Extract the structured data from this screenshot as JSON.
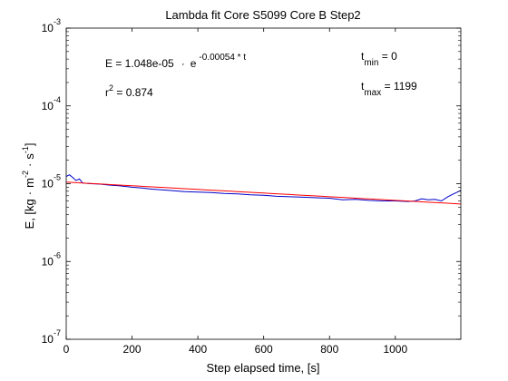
{
  "chart_data": {
    "type": "line",
    "title": "Lambda fit  Core S5099 Core B  Step2",
    "xlabel": "Step elapsed time, [s]",
    "ylabel": {
      "base": "E, [kg",
      "m": "m",
      "exp_m": "-2",
      "s": "s",
      "exp_s": "-1",
      "close": "]"
    },
    "xlim": [
      0,
      1199
    ],
    "ylim": [
      1e-07,
      0.001
    ],
    "yscale": "log",
    "grid": false,
    "xticks": [
      0,
      200,
      400,
      600,
      800,
      1000
    ],
    "xtick_labels": [
      "0",
      "200",
      "400",
      "600",
      "800",
      "1000"
    ],
    "yticks": [
      1e-07,
      1e-06,
      1e-05,
      0.0001,
      0.001
    ],
    "ytick_labels": [
      {
        "base": "10",
        "exp": "-7"
      },
      {
        "base": "10",
        "exp": "-6"
      },
      {
        "base": "10",
        "exp": "-5"
      },
      {
        "base": "10",
        "exp": "-4"
      },
      {
        "base": "10",
        "exp": "-3"
      }
    ],
    "annotations": {
      "equation": {
        "lhs": "E = 1.048e-05",
        "dot": "·",
        "base": "e",
        "exp": "-0.00054 * t"
      },
      "r2": {
        "label": "r",
        "exp": "2",
        "value": " = 0.874"
      },
      "tmin": {
        "label": "t",
        "sub": "min",
        "value": " = 0"
      },
      "tmax": {
        "label": "t",
        "sub": "max",
        "value": " = 1199"
      }
    },
    "series": [
      {
        "color": "#0000cc",
        "x": [
          0,
          10,
          20,
          30,
          40,
          50,
          75,
          100,
          130,
          160,
          200,
          230,
          260,
          300,
          330,
          360,
          400,
          440,
          480,
          520,
          560,
          600,
          640,
          680,
          720,
          760,
          800,
          840,
          880,
          920,
          960,
          1000,
          1040,
          1060,
          1080,
          1100,
          1120,
          1140,
          1160,
          1180,
          1199
        ],
        "y": [
          1.24e-05,
          1.3e-05,
          1.2e-05,
          1.1e-05,
          1.15e-05,
          1.02e-05,
          1e-05,
          9.9e-06,
          9.6e-06,
          9.4e-06,
          9e-06,
          8.8e-06,
          8.5e-06,
          8.3e-06,
          8.1e-06,
          7.9e-06,
          7.8e-06,
          7.7e-06,
          7.5e-06,
          7.4e-06,
          7.2e-06,
          7.1e-06,
          6.9e-06,
          6.8e-06,
          6.7e-06,
          6.6e-06,
          6.5e-06,
          6.2e-06,
          6.3e-06,
          6.1e-06,
          6e-06,
          6e-06,
          5.9e-06,
          6e-06,
          6.4e-06,
          6.2e-06,
          6.3e-06,
          6e-06,
          6.8e-06,
          7.5e-06,
          8.2e-06
        ]
      },
      {
        "color": "#ff0000",
        "fit": {
          "a": 1.048e-05,
          "k": -0.00054
        }
      }
    ]
  }
}
